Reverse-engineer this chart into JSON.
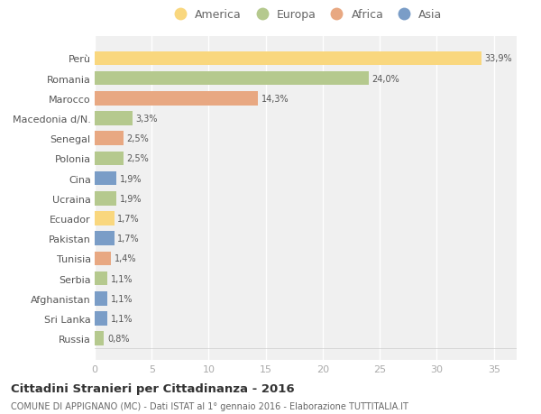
{
  "countries": [
    "Perù",
    "Romania",
    "Marocco",
    "Macedonia d/N.",
    "Senegal",
    "Polonia",
    "Cina",
    "Ucraina",
    "Ecuador",
    "Pakistan",
    "Tunisia",
    "Serbia",
    "Afghanistan",
    "Sri Lanka",
    "Russia"
  ],
  "values": [
    33.9,
    24.0,
    14.3,
    3.3,
    2.5,
    2.5,
    1.9,
    1.9,
    1.7,
    1.7,
    1.4,
    1.1,
    1.1,
    1.1,
    0.8
  ],
  "labels": [
    "33,9%",
    "24,0%",
    "14,3%",
    "3,3%",
    "2,5%",
    "2,5%",
    "1,9%",
    "1,9%",
    "1,7%",
    "1,7%",
    "1,4%",
    "1,1%",
    "1,1%",
    "1,1%",
    "0,8%"
  ],
  "continents": [
    "America",
    "Europa",
    "Africa",
    "Europa",
    "Africa",
    "Europa",
    "Asia",
    "Europa",
    "America",
    "Asia",
    "Africa",
    "Europa",
    "Asia",
    "Asia",
    "Europa"
  ],
  "colors": {
    "America": "#F9D77E",
    "Europa": "#B5C98E",
    "Africa": "#E8A882",
    "Asia": "#7A9DC7"
  },
  "legend_order": [
    "America",
    "Europa",
    "Africa",
    "Asia"
  ],
  "title": "Cittadini Stranieri per Cittadinanza - 2016",
  "subtitle": "COMUNE DI APPIGNANO (MC) - Dati ISTAT al 1° gennaio 2016 - Elaborazione TUTTITALIA.IT",
  "xlim": [
    0,
    37
  ],
  "xticks": [
    0,
    5,
    10,
    15,
    20,
    25,
    30,
    35
  ],
  "background_color": "#ffffff",
  "plot_bg_color": "#f0f0f0"
}
